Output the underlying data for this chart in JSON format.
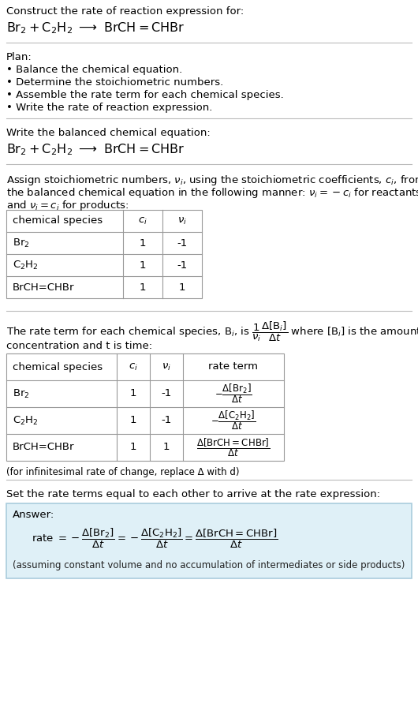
{
  "bg_color": "#ffffff",
  "text_color": "#000000",
  "title_line1": "Construct the rate of reaction expression for:",
  "section1_title": "Plan:",
  "section1_bullets": [
    "• Balance the chemical equation.",
    "• Determine the stoichiometric numbers.",
    "• Assemble the rate term for each chemical species.",
    "• Write the rate of reaction expression."
  ],
  "section2_title": "Write the balanced chemical equation:",
  "table1_headers": [
    "chemical species",
    "c_i",
    "nu_i"
  ],
  "table1_rows": [
    [
      "Br_2",
      "1",
      "-1"
    ],
    [
      "C_2H_2",
      "1",
      "-1"
    ],
    [
      "BrCH=CHBr",
      "1",
      "1"
    ]
  ],
  "table2_headers": [
    "chemical species",
    "c_i",
    "nu_i",
    "rate term"
  ],
  "table2_rows": [
    [
      "Br_2",
      "1",
      "-1",
      "neg_br2"
    ],
    [
      "C_2H_2",
      "1",
      "-1",
      "neg_c2h2"
    ],
    [
      "BrCH=CHBr",
      "1",
      "1",
      "pos_brch"
    ]
  ],
  "infinitesimal_note": "(for infinitesimal rate of change, replace Δ with d)",
  "section5_title": "Set the rate terms equal to each other to arrive at the rate expression:",
  "answer_label": "Answer:",
  "answer_box_color": "#dff0f7",
  "answer_note": "(assuming constant volume and no accumulation of intermediates or side products)"
}
